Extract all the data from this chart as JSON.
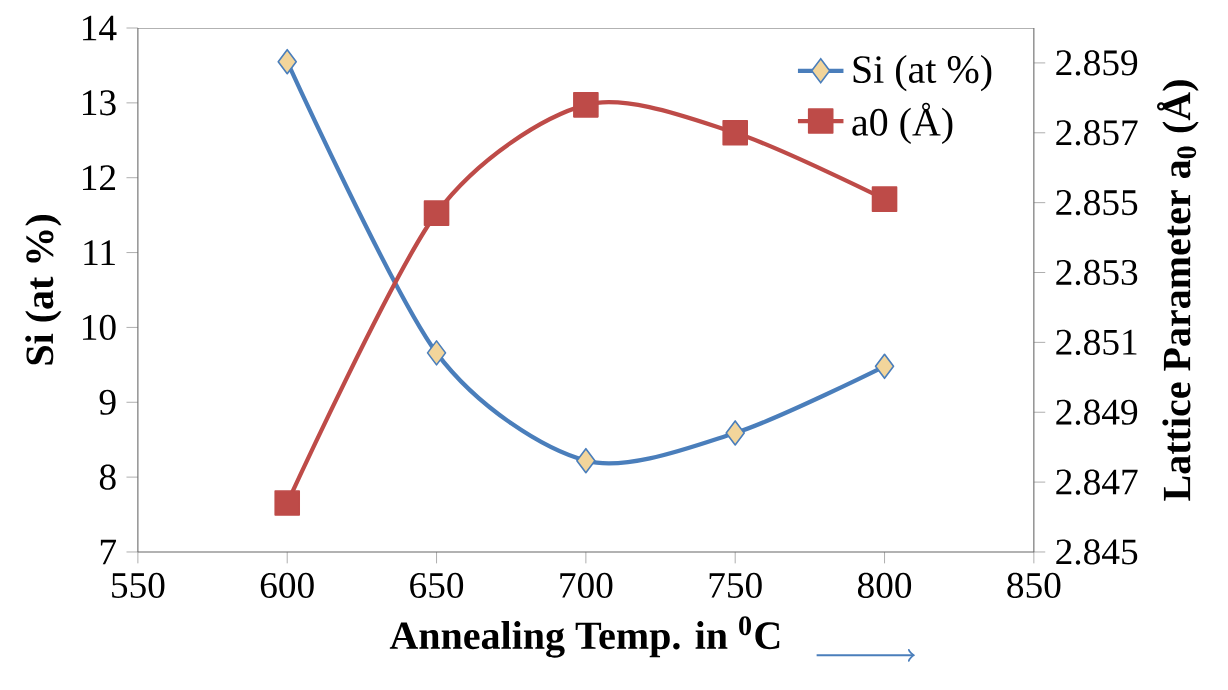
{
  "chart_data": {
    "type": "line",
    "xlabel": "Annealing Temp. in $^{0}$C",
    "ylabel": "Si (at %)",
    "y2label": "Lattice Parameter a$_{0}$ (Å)",
    "x": [
      600,
      650,
      700,
      750,
      800
    ],
    "series": [
      {
        "name": "Si (at %)",
        "color": "#4a7ebb",
        "marker": "diamond",
        "values": [
          13.55,
          9.66,
          8.22,
          8.59,
          9.48
        ]
      },
      {
        "name": "a0 (Å)",
        "color": "#be4b48",
        "marker": "square",
        "axis": "y2",
        "values": [
          2.8464,
          2.8547,
          2.8578,
          2.857,
          2.8551
        ]
      }
    ],
    "xlim": [
      550,
      850
    ],
    "xticks": [
      550,
      600,
      650,
      700,
      750,
      800,
      850
    ],
    "ylim": [
      7,
      14
    ],
    "yticks": [
      7,
      8,
      9,
      10,
      11,
      12,
      13,
      14
    ],
    "y2lim": [
      2.845,
      2.86
    ],
    "y2ticks": [
      2.845,
      2.847,
      2.849,
      2.851,
      2.853,
      2.855,
      2.857,
      2.859
    ],
    "legend": "top right",
    "grid": false,
    "line_style": "solid"
  }
}
